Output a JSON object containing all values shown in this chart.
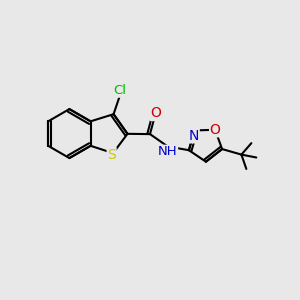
{
  "background_color": "#e8e8e8",
  "bond_color": "#000000",
  "bond_width": 1.5,
  "atom_colors": {
    "C": "#000000",
    "H": "#000000",
    "N": "#0000cc",
    "O": "#cc0000",
    "S": "#cccc00",
    "Cl": "#00bb00"
  },
  "font_size": 9.5,
  "xlim": [
    0,
    10
  ],
  "ylim": [
    0,
    8
  ]
}
